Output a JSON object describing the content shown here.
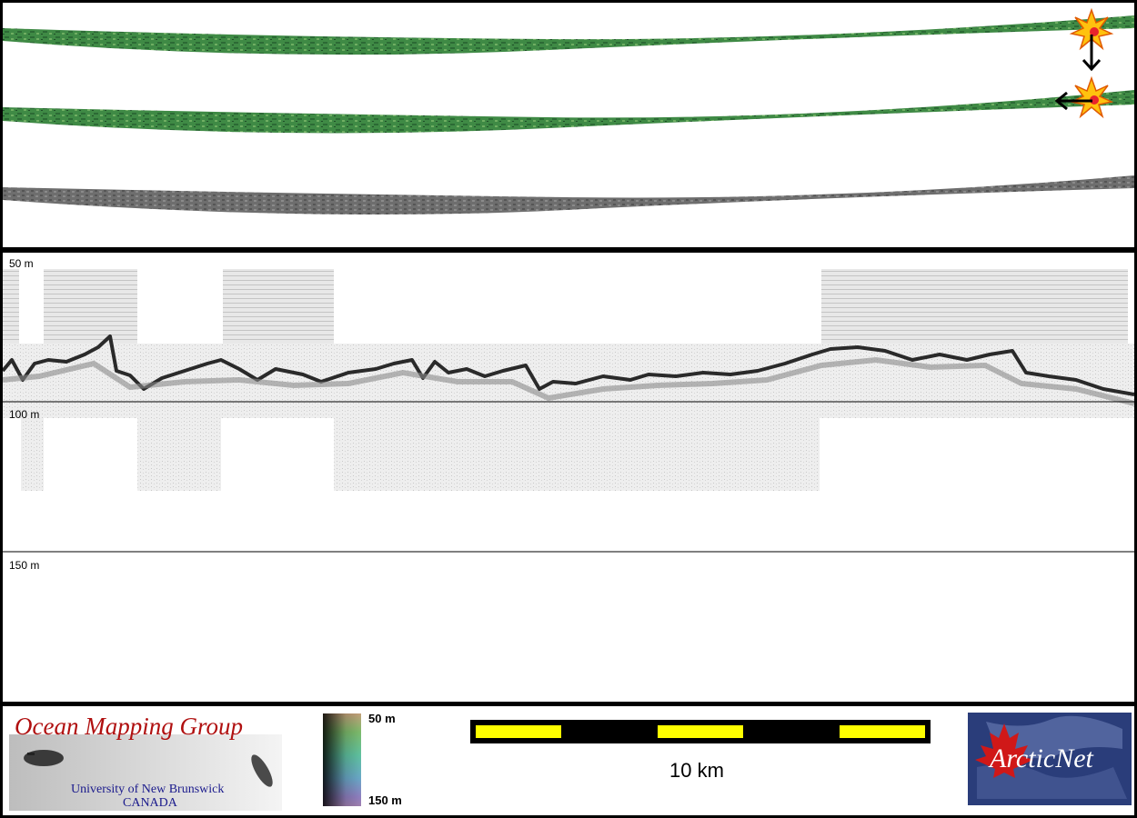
{
  "profile": {
    "depth_labels": [
      "50 m",
      "100 m",
      "150 m"
    ]
  },
  "footer": {
    "omg_logo": {
      "title": "Ocean Mapping Group",
      "line1": "University of New Brunswick",
      "line2": "CANADA"
    },
    "depth_legend": {
      "top_label": "50 m",
      "bottom_label": "150 m"
    },
    "scale_bar": {
      "label": "10 km"
    },
    "arcticnet_logo": {
      "text": "ArcticNet"
    }
  },
  "colors": {
    "frame": "#000000",
    "swath_green": "#3f8a45",
    "backscatter_gray": "#6e6e6e",
    "scale_yellow": "#ffff00",
    "omg_red": "#b01010",
    "omg_blue": "#1a1a8c",
    "arcticnet_blue": "#2a3d7a",
    "maple_red": "#d01818"
  },
  "icons": {
    "map_markers": [
      "starburst-marker-icon",
      "starburst-marker-icon"
    ],
    "arrows": [
      "arrow-down-icon",
      "arrow-left-icon"
    ]
  }
}
